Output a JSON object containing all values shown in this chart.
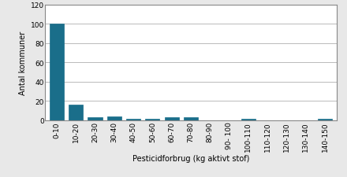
{
  "categories": [
    "0-10",
    "10-20",
    "20-30",
    "30-40",
    "40-50",
    "50-60",
    "60-70",
    "70-80",
    "80-90",
    "90- 100",
    "100-110",
    "110-120",
    "120-130",
    "130-140",
    "140-150"
  ],
  "values": [
    100,
    16,
    3,
    4,
    1,
    1,
    3,
    3,
    0,
    0,
    1,
    0,
    0,
    0,
    1
  ],
  "bar_color": "#1a6e8a",
  "xlabel": "Pesticidforbrug (kg aktivt stof)",
  "ylabel": "Antal kommuner",
  "ylim": [
    0,
    120
  ],
  "yticks": [
    0,
    20,
    40,
    60,
    80,
    100,
    120
  ],
  "background_color": "#e8e8e8",
  "plot_bg_color": "#ffffff",
  "label_fontsize": 7,
  "tick_fontsize": 6.5
}
